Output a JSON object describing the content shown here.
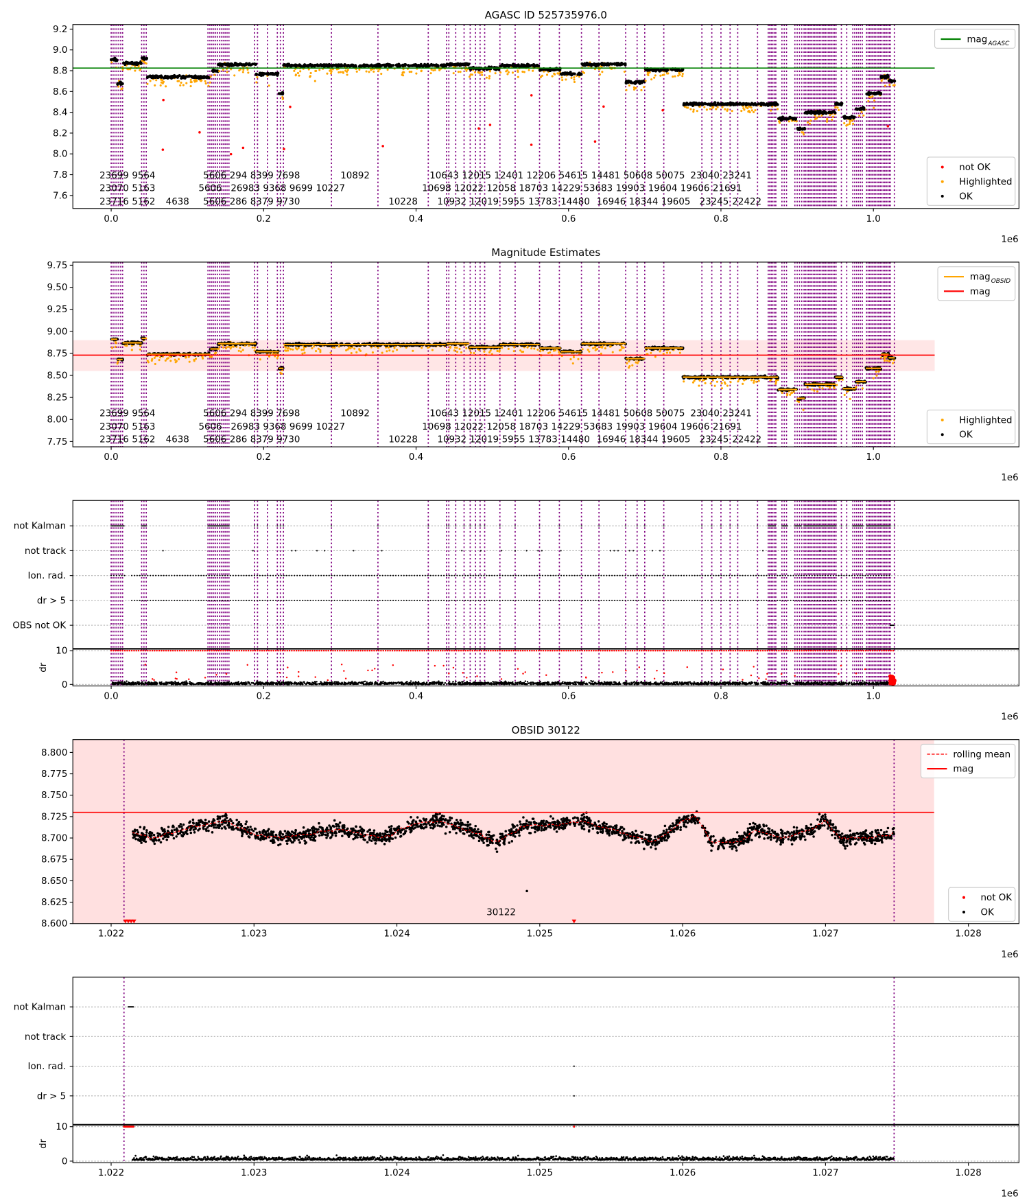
{
  "chart_data": [
    {
      "type": "scatter",
      "title": "AGASC ID 525735976.0",
      "xlim": [
        -0.0503,
        1.191
      ],
      "ylim": [
        7.475,
        9.244
      ],
      "x_offset_label": "1e6",
      "xticks": [
        0.0,
        0.2,
        0.4,
        0.6,
        0.8,
        1.0
      ],
      "xtick_labels": [
        "0.0",
        "0.2",
        "0.4",
        "0.6",
        "0.8",
        "1.0"
      ],
      "yticks": [
        7.6,
        7.8,
        8.0,
        8.2,
        8.4,
        8.6,
        8.8,
        9.0,
        9.2
      ],
      "ytick_labels": [
        "7.6",
        "7.8",
        "8.0",
        "8.2",
        "8.4",
        "8.6",
        "8.8",
        "9.0",
        "9.2"
      ],
      "mag_agasc": 8.825,
      "mag_line_xmax": 1.0804,
      "label_rows_y": [
        7.8,
        7.68,
        7.55
      ],
      "legend_upper": {
        "placement": "top-right",
        "entries": [
          {
            "label": "mag",
            "sub": "AGASC",
            "color": "#008000",
            "kind": "line"
          }
        ]
      },
      "legend_lower": {
        "placement": "bottom-right",
        "entries": [
          {
            "label": "not OK",
            "color": "#ff0000",
            "kind": "dot"
          },
          {
            "label": "Highlighted",
            "color": "#ffa500",
            "kind": "dot"
          },
          {
            "label": "OK",
            "color": "#000000",
            "kind": "dot"
          }
        ]
      }
    },
    {
      "type": "scatter",
      "title": "Magnitude Estimates",
      "xlim": [
        -0.0503,
        1.191
      ],
      "ylim": [
        7.69,
        9.785
      ],
      "x_offset_label": "1e6",
      "xticks": [
        0.0,
        0.2,
        0.4,
        0.6,
        0.8,
        1.0
      ],
      "xtick_labels": [
        "0.0",
        "0.2",
        "0.4",
        "0.6",
        "0.8",
        "1.0"
      ],
      "yticks": [
        7.75,
        8.0,
        8.25,
        8.5,
        8.75,
        9.0,
        9.25,
        9.5,
        9.75
      ],
      "ytick_labels": [
        "7.75",
        "8.00",
        "8.25",
        "8.50",
        "8.75",
        "9.00",
        "9.25",
        "9.50",
        "9.75"
      ],
      "mag": 8.73,
      "mag_band": [
        8.55,
        8.9
      ],
      "mag_line_xmax": 1.0804,
      "label_rows_y": [
        8.08,
        7.93,
        7.785
      ],
      "legend_upper": {
        "placement": "top-right",
        "entries": [
          {
            "label": "mag",
            "sub": "OBSID",
            "color": "#ffa500",
            "kind": "line"
          },
          {
            "label": "mag",
            "sub": "",
            "color": "#ff0000",
            "kind": "line"
          }
        ]
      },
      "legend_lower": {
        "placement": "bottom-right",
        "entries": [
          {
            "label": "Highlighted",
            "color": "#ffa500",
            "kind": "dot"
          },
          {
            "label": "OK",
            "color": "#000000",
            "kind": "dot"
          }
        ]
      }
    },
    {
      "type": "scatter",
      "title": "",
      "xlim": [
        -0.0503,
        1.191
      ],
      "ylim": [
        -0.93,
        5.02
      ],
      "x_offset_label": "1e6",
      "xticks": [
        0.0,
        0.2,
        0.4,
        0.6,
        0.8,
        1.0
      ],
      "xtick_labels": [
        "0.0",
        "0.2",
        "0.4",
        "0.6",
        "0.8",
        "1.0"
      ],
      "categories": [
        "OBS not OK",
        "dr > 5",
        "Ion. rad.",
        "not track",
        "not Kalman"
      ],
      "dr_ylim": [
        -0.45,
        10.45
      ],
      "dr_ylabel": "dr",
      "dr_yticks": [
        0,
        10
      ],
      "dr_ytick_labels": [
        "0",
        "10"
      ],
      "ion_rad_ranges": [
        [
          0.0,
          0.02
        ],
        [
          0.027,
          1.022
        ]
      ],
      "dr5_ranges": [
        [
          0.027,
          1.022
        ]
      ],
      "obs_not_ok_ranges": [
        [
          1.0221,
          1.0275
        ]
      ],
      "not_track_x": [
        0.068,
        0.186,
        0.237,
        0.242,
        0.27,
        0.28,
        0.318,
        0.355,
        0.46,
        0.485,
        0.512,
        0.53,
        0.545,
        0.56,
        0.565,
        0.59,
        0.655,
        0.66,
        0.665,
        0.68,
        0.685,
        0.71,
        0.72,
        0.855,
        0.93
      ]
    },
    {
      "type": "scatter",
      "title": "OBSID 30122",
      "xlim": [
        1.021732,
        1.028354
      ],
      "ylim": [
        8.6,
        8.815
      ],
      "x_offset_label": "1e6",
      "xticks": [
        1.022,
        1.023,
        1.024,
        1.025,
        1.026,
        1.027,
        1.028
      ],
      "xtick_labels": [
        "1.022",
        "1.023",
        "1.024",
        "1.025",
        "1.026",
        "1.027",
        "1.028"
      ],
      "yticks": [
        8.6,
        8.625,
        8.65,
        8.675,
        8.7,
        8.725,
        8.75,
        8.775,
        8.8
      ],
      "ytick_labels": [
        "8.600",
        "8.625",
        "8.650",
        "8.675",
        "8.700",
        "8.725",
        "8.750",
        "8.775",
        "8.800"
      ],
      "mag": 8.73,
      "band": [
        8.55,
        8.9
      ],
      "band_xmax": 1.02776,
      "obsid_lines": [
        1.02209,
        1.02748
      ],
      "obsid_label": {
        "text": "30122",
        "x": 1.02473,
        "y": 8.607
      },
      "outlier": {
        "x": 1.02491,
        "y": 8.638
      },
      "not_ok_x": [
        1.0221,
        1.02212,
        1.02214,
        1.02216,
        1.02524
      ],
      "rolling_mean": {
        "x": [
          1.02215,
          1.0223,
          1.0225,
          1.0228,
          1.023,
          1.0232,
          1.0234,
          1.0236,
          1.0239,
          1.0241,
          1.0243,
          1.0245,
          1.0247,
          1.0249,
          1.0251,
          1.0253,
          1.0255,
          1.0257,
          1.0258,
          1.026,
          1.0261,
          1.0262,
          1.0264,
          1.0265,
          1.0267,
          1.0269,
          1.027,
          1.0271,
          1.0273,
          1.02748
        ],
        "y": [
          8.705,
          8.7,
          8.71,
          8.72,
          8.705,
          8.7,
          8.705,
          8.71,
          8.7,
          8.715,
          8.72,
          8.71,
          8.695,
          8.715,
          8.715,
          8.72,
          8.71,
          8.7,
          8.695,
          8.72,
          8.725,
          8.695,
          8.695,
          8.71,
          8.7,
          8.71,
          8.72,
          8.7,
          8.7,
          8.705
        ]
      },
      "legend_upper": {
        "placement": "top-right",
        "entries": [
          {
            "label": "rolling mean",
            "color": "#ff0000",
            "kind": "dashed"
          },
          {
            "label": "mag",
            "color": "#ff0000",
            "kind": "line"
          }
        ]
      },
      "legend_lower": {
        "placement": "bottom-right",
        "entries": [
          {
            "label": "not OK",
            "color": "#ff0000",
            "kind": "dot"
          },
          {
            "label": "OK",
            "color": "#000000",
            "kind": "dot"
          }
        ]
      }
    },
    {
      "type": "scatter",
      "title": "",
      "xlim": [
        1.021732,
        1.028354
      ],
      "ylim": [
        -0.96,
        4.0
      ],
      "x_offset_label": "1e6",
      "xticks": [
        1.022,
        1.023,
        1.024,
        1.025,
        1.026,
        1.027,
        1.028
      ],
      "xtick_labels": [
        "1.022",
        "1.023",
        "1.024",
        "1.025",
        "1.026",
        "1.027",
        "1.028"
      ],
      "categories": [
        "dr > 5",
        "Ion. rad.",
        "not track",
        "not Kalman"
      ],
      "dr_ylim": [
        -0.45,
        10.45
      ],
      "dr_ylabel": "dr",
      "dr_yticks": [
        0,
        10
      ],
      "dr_ytick_labels": [
        "0",
        "10"
      ],
      "not_kalman_range": [
        1.02212,
        1.02216
      ],
      "flag_x": 1.02524,
      "obsid_lines": [
        1.02209,
        1.02748
      ]
    }
  ],
  "segments": [
    [
      0.0,
      0.008,
      8.91
    ],
    [
      0.008,
      0.015,
      8.68
    ],
    [
      0.015,
      0.04,
      8.87
    ],
    [
      0.04,
      0.047,
      8.92
    ],
    [
      0.047,
      0.13,
      8.74
    ],
    [
      0.13,
      0.14,
      8.8
    ],
    [
      0.14,
      0.19,
      8.86
    ],
    [
      0.19,
      0.22,
      8.77
    ],
    [
      0.22,
      0.226,
      8.58
    ],
    [
      0.226,
      0.44,
      8.85
    ],
    [
      0.44,
      0.47,
      8.86
    ],
    [
      0.47,
      0.51,
      8.82
    ],
    [
      0.51,
      0.562,
      8.85
    ],
    [
      0.562,
      0.59,
      8.81
    ],
    [
      0.59,
      0.617,
      8.77
    ],
    [
      0.617,
      0.675,
      8.86
    ],
    [
      0.675,
      0.7,
      8.69
    ],
    [
      0.7,
      0.75,
      8.81
    ],
    [
      0.75,
      0.875,
      8.48
    ],
    [
      0.875,
      0.9,
      8.34
    ],
    [
      0.9,
      0.91,
      8.24
    ],
    [
      0.91,
      0.95,
      8.4
    ],
    [
      0.95,
      0.96,
      8.48
    ],
    [
      0.96,
      0.977,
      8.35
    ],
    [
      0.977,
      0.99,
      8.43
    ],
    [
      0.99,
      1.01,
      8.58
    ],
    [
      1.01,
      1.02,
      8.74
    ],
    [
      1.02,
      1.028,
      8.7
    ]
  ],
  "obsid_lines": {
    "single": [
      0.188,
      0.192,
      0.205,
      0.218,
      0.222,
      0.226,
      0.289,
      0.35,
      0.416,
      0.44,
      0.443,
      0.452,
      0.463,
      0.471,
      0.478,
      0.484,
      0.49,
      0.51,
      0.53,
      0.562,
      0.588,
      0.617,
      0.64,
      0.675,
      0.69,
      0.7,
      0.725,
      0.775,
      0.788,
      0.8,
      0.812,
      0.822,
      0.848,
      0.958,
      0.965,
      1.0221,
      1.0275
    ],
    "clusters": [
      [
        0.0,
        0.017,
        0.0025
      ],
      [
        0.04,
        0.047,
        0.003
      ],
      [
        0.127,
        0.155,
        0.0025
      ],
      [
        0.862,
        0.872,
        0.002
      ],
      [
        0.88,
        0.888,
        0.003
      ],
      [
        0.897,
        0.906,
        0.003
      ],
      [
        0.909,
        0.952,
        0.002
      ],
      [
        0.973,
        0.987,
        0.0025
      ],
      [
        0.991,
        1.022,
        0.002
      ]
    ]
  },
  "obsid_labels": [
    [
      [
        "23699",
        0.004
      ],
      [
        "9564",
        0.04
      ],
      [
        "5606",
        0.136
      ],
      [
        "294",
        0.157
      ],
      [
        "8399",
        0.186
      ],
      [
        "7698",
        0.218
      ],
      [
        "10892",
        0.32
      ],
      [
        "10643",
        0.437
      ],
      [
        "12015",
        0.466
      ],
      [
        "12401",
        0.495
      ],
      [
        "12206",
        0.52
      ],
      [
        "54615",
        0.588
      ],
      [
        "14481",
        0.624
      ],
      [
        "50608",
        0.686
      ],
      [
        "50075",
        0.725
      ],
      [
        "23040",
        0.779
      ],
      [
        "23241",
        0.814
      ]
    ],
    [
      [
        "23070",
        0.004
      ],
      [
        "5163",
        0.04
      ],
      [
        "5606",
        0.13
      ],
      [
        "26983",
        0.176
      ],
      [
        "9368",
        0.196
      ],
      [
        "9699",
        0.218
      ],
      [
        "10227",
        0.256
      ],
      [
        "10698",
        0.427
      ],
      [
        "12022",
        0.463
      ],
      [
        "12058",
        0.49
      ],
      [
        "18703",
        0.518
      ],
      [
        "14229",
        0.576
      ],
      [
        "53683",
        0.61
      ],
      [
        "19903",
        0.68
      ],
      [
        "19604",
        0.713
      ],
      [
        "19606",
        0.761
      ],
      [
        "21691",
        0.801
      ]
    ],
    [
      [
        "23716",
        0.004
      ],
      [
        "5162",
        0.04
      ],
      [
        "4638",
        0.087
      ],
      [
        "5606",
        0.136
      ],
      [
        "286",
        0.157
      ],
      [
        "8379",
        0.191
      ],
      [
        "9730",
        0.218
      ],
      [
        "10228",
        0.383
      ],
      [
        "10932",
        0.447
      ],
      [
        "12019",
        0.472
      ],
      [
        "5955",
        0.493
      ],
      [
        "13783",
        0.546
      ],
      [
        "14480",
        0.6
      ],
      [
        "16946",
        0.656
      ],
      [
        "18344",
        0.696
      ],
      [
        "19605",
        0.737
      ],
      [
        "23245",
        0.791
      ],
      [
        "22422",
        0.834
      ]
    ]
  ],
  "colors": {
    "ok": "#000000",
    "not_ok": "#ff0000",
    "highlighted": "#ffa500",
    "agasc": "#008000",
    "obsid_line": "#800080",
    "band": "#ffe0e0"
  }
}
